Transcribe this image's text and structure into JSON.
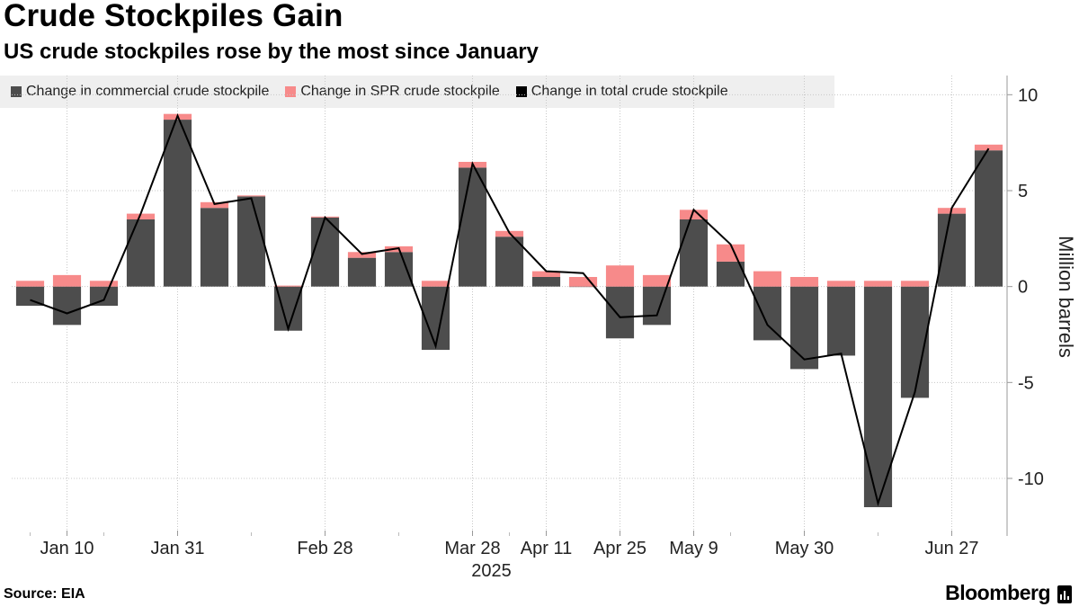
{
  "header": {
    "title": "Crude Stockpiles Gain",
    "subtitle": "US crude stockpiles rose by the most since January"
  },
  "legend": [
    {
      "label": "Change in commercial crude stockpile",
      "color": "#4d4d4d"
    },
    {
      "label": "Change in SPR crude stockpile",
      "color": "#f78a8a"
    },
    {
      "label": "Change in total crude stockpile",
      "color": "#000000"
    }
  ],
  "footer": {
    "source": "Source: EIA",
    "brand": "Bloomberg"
  },
  "chart_data": {
    "type": "bar",
    "x": [
      "2025-01-03",
      "2025-01-10",
      "2025-01-17",
      "2025-01-24",
      "2025-01-31",
      "2025-02-07",
      "2025-02-14",
      "2025-02-21",
      "2025-02-28",
      "2025-03-07",
      "2025-03-14",
      "2025-03-21",
      "2025-03-28",
      "2025-04-04",
      "2025-04-11",
      "2025-04-18",
      "2025-04-25",
      "2025-05-02",
      "2025-05-09",
      "2025-05-16",
      "2025-05-23",
      "2025-05-30",
      "2025-06-06",
      "2025-06-13",
      "2025-06-20",
      "2025-06-27",
      "2025-07-04"
    ],
    "x_tick_labels": [
      "Jan 10",
      "Jan 31",
      "Feb 28",
      "Mar 28",
      "Apr 11",
      "Apr 25",
      "May 9",
      "May 30",
      "Jun 27"
    ],
    "x_tick_dates": [
      "2025-01-10",
      "2025-01-31",
      "2025-02-28",
      "2025-03-28",
      "2025-04-11",
      "2025-04-25",
      "2025-05-09",
      "2025-05-30",
      "2025-06-27"
    ],
    "x_year_label": "2025",
    "series": [
      {
        "name": "Change in commercial crude stockpile",
        "type": "bar",
        "color": "#4d4d4d",
        "values": [
          -1.0,
          -2.0,
          -1.0,
          3.5,
          8.7,
          4.1,
          4.7,
          -2.3,
          3.6,
          1.5,
          1.8,
          -3.3,
          6.2,
          2.6,
          0.5,
          0.0,
          -2.7,
          -2.0,
          3.5,
          1.3,
          -2.8,
          -4.3,
          -3.6,
          -11.5,
          -5.8,
          3.8,
          7.1
        ]
      },
      {
        "name": "Change in SPR crude stockpile",
        "type": "bar",
        "color": "#f78a8a",
        "values": [
          0.3,
          0.6,
          0.3,
          0.3,
          0.3,
          0.3,
          0.05,
          0.05,
          0.05,
          0.3,
          0.3,
          0.3,
          0.3,
          0.3,
          0.3,
          0.5,
          1.1,
          0.6,
          0.5,
          0.9,
          0.8,
          0.5,
          0.3,
          0.3,
          0.3,
          0.3,
          0.3
        ]
      },
      {
        "name": "Change in total crude stockpile",
        "type": "line",
        "color": "#000000",
        "values": [
          -0.7,
          -1.4,
          -0.7,
          3.8,
          8.9,
          4.3,
          4.6,
          -2.2,
          3.6,
          1.7,
          2.0,
          -3.1,
          6.4,
          2.8,
          0.8,
          0.7,
          -1.6,
          -1.5,
          4.0,
          2.2,
          -2.0,
          -3.8,
          -3.5,
          -11.3,
          -5.5,
          4.1,
          7.2
        ]
      }
    ],
    "ylabel": "Million barrels",
    "ylim": [
      -13,
      11
    ],
    "yticks": [
      10,
      5,
      0,
      -5,
      -10
    ],
    "ytick_labels": [
      "10",
      "5",
      "0",
      "-5",
      "-10"
    ],
    "grid": true,
    "legend_position": "top-left"
  }
}
